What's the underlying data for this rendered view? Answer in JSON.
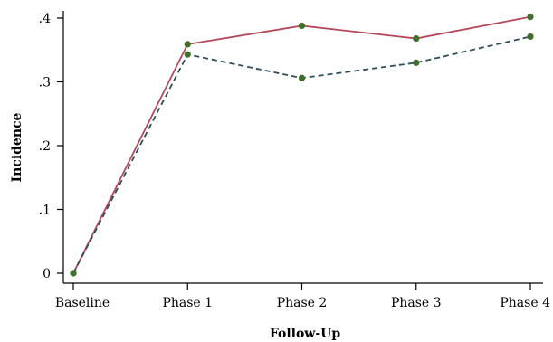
{
  "chart_data": {
    "type": "line",
    "title": "",
    "xlabel": "Follow-Up",
    "ylabel": "Incidence",
    "categories": [
      "Baseline",
      "Phase 1",
      "Phase 2",
      "Phase 3",
      "Phase 4"
    ],
    "yticks": [
      "0",
      ".1",
      ".2",
      ".3",
      ".4"
    ],
    "ylim": [
      0,
      0.4
    ],
    "grid": false,
    "series": [
      {
        "values": [
          0,
          0.359,
          0.388,
          0.368,
          0.402
        ],
        "color": "#b5495b",
        "style": "solid",
        "marker_color": "#3f6f2a"
      },
      {
        "values": [
          0,
          0.343,
          0.306,
          0.33,
          0.371
        ],
        "color": "#2f4f5a",
        "style": "dashed",
        "marker_color": "#3f6f2a"
      }
    ]
  }
}
